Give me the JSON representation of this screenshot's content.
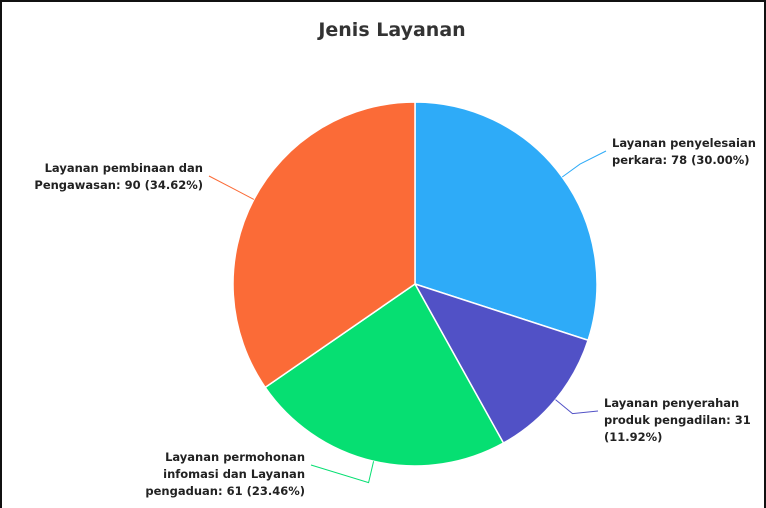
{
  "chart_data": {
    "type": "pie",
    "title": "Jenis Layanan",
    "values": [
      78,
      31,
      61,
      90
    ],
    "value_labels": [
      "Layanan penyelesaian perkara: 78 (30.00%)",
      "Layanan penyerahan produk pengadilan: 31 (11.92%)",
      "Layanan permohonan infomasi dan Layanan pengaduan: 61 (23.46%)",
      "Layanan pembinaan dan Pengawasan: 90 (34.62%)"
    ],
    "colors": [
      "#2eabf8",
      "#5151c6",
      "#06df72",
      "#fb6b37"
    ]
  }
}
